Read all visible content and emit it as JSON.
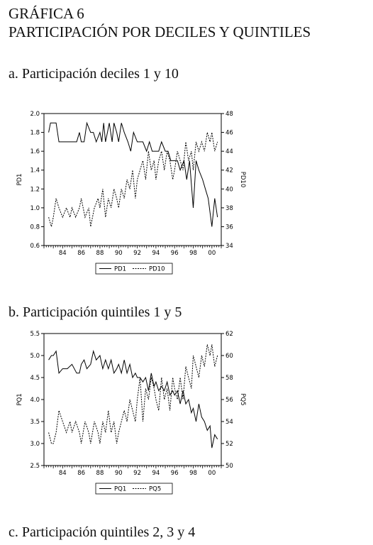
{
  "heading": {
    "line1": "GRÁFICA 6",
    "line2": "PARTICIPACIÓN POR DECILES Y QUINTILES"
  },
  "sections": {
    "a": "a. Participación deciles 1 y 10",
    "b": "b. Participación quintiles 1 y 5",
    "c": "c. Participación quintiles 2, 3 y 4"
  },
  "chart_data": [
    {
      "type": "line",
      "xlim": [
        1982,
        2001
      ],
      "xticks": [
        "84",
        "86",
        "88",
        "90",
        "92",
        "94",
        "96",
        "98",
        "00"
      ],
      "left_axis": {
        "label": "PD1",
        "ylim": [
          0.6,
          2.0
        ],
        "ticks": [
          "0.6",
          "0.8",
          "1.0",
          "1.2",
          "1.4",
          "1.6",
          "1.8",
          "2.0"
        ]
      },
      "right_axis": {
        "label": "PD10",
        "ylim": [
          34,
          48
        ],
        "ticks": [
          "34",
          "36",
          "38",
          "40",
          "42",
          "44",
          "46",
          "48"
        ]
      },
      "legend": [
        "PD1",
        "PD10"
      ],
      "legend_position": "bottom",
      "series": [
        {
          "name": "PD1",
          "axis": "left",
          "style": "solid",
          "x": [
            1982.5,
            1982.7,
            1983.0,
            1983.3,
            1983.6,
            1984.0,
            1984.5,
            1985.0,
            1985.5,
            1985.8,
            1986.0,
            1986.3,
            1986.6,
            1987.0,
            1987.3,
            1987.6,
            1988.0,
            1988.2,
            1988.4,
            1988.6,
            1988.8,
            1989.0,
            1989.3,
            1989.5,
            1989.8,
            1990.0,
            1990.3,
            1990.6,
            1991.0,
            1991.3,
            1991.6,
            1992.0,
            1992.3,
            1992.6,
            1993.0,
            1993.3,
            1993.6,
            1994.0,
            1994.3,
            1994.6,
            1995.0,
            1995.3,
            1995.6,
            1996.0,
            1996.3,
            1996.6,
            1997.0,
            1997.3,
            1997.6,
            1998.0,
            1998.3,
            1998.6,
            1999.0,
            1999.3,
            1999.6,
            2000.0,
            2000.3,
            2000.6
          ],
          "y": [
            1.8,
            1.9,
            1.9,
            1.9,
            1.7,
            1.7,
            1.7,
            1.7,
            1.7,
            1.8,
            1.7,
            1.7,
            1.9,
            1.8,
            1.8,
            1.7,
            1.8,
            1.7,
            1.9,
            1.7,
            1.8,
            1.9,
            1.7,
            1.9,
            1.8,
            1.7,
            1.9,
            1.8,
            1.7,
            1.6,
            1.8,
            1.7,
            1.7,
            1.7,
            1.6,
            1.7,
            1.6,
            1.6,
            1.6,
            1.7,
            1.6,
            1.6,
            1.5,
            1.5,
            1.5,
            1.4,
            1.5,
            1.3,
            1.5,
            1.0,
            1.5,
            1.4,
            1.3,
            1.2,
            1.1,
            0.8,
            1.1,
            0.9
          ]
        },
        {
          "name": "PD10",
          "axis": "right",
          "style": "dashed",
          "x": [
            1982.5,
            1982.8,
            1983.0,
            1983.3,
            1983.6,
            1984.0,
            1984.4,
            1984.8,
            1985.0,
            1985.4,
            1985.8,
            1986.0,
            1986.4,
            1986.8,
            1987.0,
            1987.4,
            1987.8,
            1988.0,
            1988.3,
            1988.6,
            1988.9,
            1989.2,
            1989.5,
            1989.8,
            1990.0,
            1990.3,
            1990.6,
            1990.9,
            1991.2,
            1991.5,
            1991.8,
            1992.0,
            1992.3,
            1992.6,
            1992.9,
            1993.2,
            1993.5,
            1993.8,
            1994.0,
            1994.3,
            1994.6,
            1994.9,
            1995.2,
            1995.5,
            1995.8,
            1996.0,
            1996.3,
            1996.6,
            1996.9,
            1997.2,
            1997.5,
            1997.8,
            1998.0,
            1998.3,
            1998.6,
            1998.9,
            1999.2,
            1999.5,
            1999.8,
            2000.0,
            2000.3,
            2000.6
          ],
          "y": [
            37,
            36,
            37,
            39,
            38,
            37,
            38,
            37,
            38,
            37,
            38,
            39,
            37,
            38,
            36,
            38,
            39,
            38,
            40,
            37,
            39,
            38,
            40,
            39,
            38,
            40,
            39,
            41,
            40,
            42,
            39,
            41,
            42,
            43,
            41,
            44,
            42,
            43,
            41,
            43,
            44,
            42,
            44,
            43,
            41,
            42,
            44,
            43,
            42,
            45,
            43,
            44,
            42,
            45,
            44,
            45,
            44,
            46,
            45,
            46,
            44,
            45
          ]
        }
      ]
    },
    {
      "type": "line",
      "xlim": [
        1982,
        2001
      ],
      "xticks": [
        "84",
        "86",
        "88",
        "90",
        "92",
        "94",
        "96",
        "98",
        "00"
      ],
      "left_axis": {
        "label": "PQ1",
        "ylim": [
          2.5,
          5.5
        ],
        "ticks": [
          "2.5",
          "3.0",
          "3.5",
          "4.0",
          "4.5",
          "5.0",
          "5.5"
        ]
      },
      "right_axis": {
        "label": "PQ5",
        "ylim": [
          50,
          62
        ],
        "ticks": [
          "50",
          "52",
          "54",
          "56",
          "58",
          "60",
          "62"
        ]
      },
      "legend": [
        "PQ1",
        "PQ5"
      ],
      "legend_position": "bottom",
      "series": [
        {
          "name": "PQ1",
          "axis": "left",
          "style": "solid",
          "x": [
            1982.5,
            1982.8,
            1983.0,
            1983.3,
            1983.6,
            1984.0,
            1984.5,
            1985.0,
            1985.5,
            1985.8,
            1986.0,
            1986.3,
            1986.6,
            1987.0,
            1987.3,
            1987.6,
            1988.0,
            1988.3,
            1988.6,
            1988.9,
            1989.2,
            1989.5,
            1989.8,
            1990.0,
            1990.3,
            1990.6,
            1990.9,
            1991.2,
            1991.5,
            1991.8,
            1992.0,
            1992.3,
            1992.6,
            1992.9,
            1993.2,
            1993.5,
            1993.8,
            1994.0,
            1994.3,
            1994.6,
            1994.9,
            1995.2,
            1995.5,
            1995.8,
            1996.0,
            1996.3,
            1996.6,
            1996.9,
            1997.2,
            1997.5,
            1997.8,
            1998.0,
            1998.3,
            1998.6,
            1998.9,
            1999.2,
            1999.5,
            1999.8,
            2000.0,
            2000.3,
            2000.6
          ],
          "y": [
            4.9,
            5.0,
            5.0,
            5.1,
            4.6,
            4.7,
            4.7,
            4.8,
            4.6,
            4.6,
            4.8,
            4.9,
            4.7,
            4.8,
            5.1,
            4.9,
            5.0,
            4.7,
            4.9,
            4.7,
            4.9,
            4.6,
            4.7,
            4.8,
            4.6,
            4.9,
            4.6,
            4.8,
            4.5,
            4.6,
            4.5,
            4.5,
            4.4,
            4.5,
            4.2,
            4.6,
            4.3,
            4.4,
            4.2,
            4.3,
            4.2,
            4.4,
            4.1,
            4.2,
            4.1,
            4.2,
            3.9,
            4.2,
            3.9,
            4.0,
            3.7,
            3.8,
            3.5,
            3.9,
            3.6,
            3.5,
            3.3,
            3.4,
            2.9,
            3.2,
            3.1
          ]
        },
        {
          "name": "PQ5",
          "axis": "right",
          "style": "dashed",
          "x": [
            1982.5,
            1982.8,
            1983.0,
            1983.3,
            1983.6,
            1984.0,
            1984.4,
            1984.8,
            1985.0,
            1985.4,
            1985.8,
            1986.0,
            1986.4,
            1986.8,
            1987.0,
            1987.4,
            1987.8,
            1988.0,
            1988.3,
            1988.6,
            1988.9,
            1989.2,
            1989.5,
            1989.8,
            1990.0,
            1990.3,
            1990.6,
            1990.9,
            1991.2,
            1991.5,
            1991.8,
            1992.0,
            1992.3,
            1992.6,
            1992.9,
            1993.2,
            1993.5,
            1993.8,
            1994.0,
            1994.3,
            1994.6,
            1994.9,
            1995.2,
            1995.5,
            1995.8,
            1996.0,
            1996.3,
            1996.6,
            1996.9,
            1997.2,
            1997.5,
            1997.8,
            1998.0,
            1998.3,
            1998.6,
            1998.9,
            1999.2,
            1999.5,
            1999.8,
            2000.0,
            2000.3,
            2000.6
          ],
          "y": [
            53,
            52,
            52,
            53,
            55,
            54,
            53,
            54,
            53,
            54,
            53,
            52,
            54,
            53,
            52,
            54,
            53,
            52,
            54,
            53,
            55,
            53,
            54,
            52,
            53,
            54,
            55,
            54,
            56,
            55,
            54,
            56,
            58,
            54,
            57,
            56,
            58,
            57,
            56,
            55,
            58,
            56,
            57,
            55,
            58,
            57,
            56,
            58,
            56,
            59,
            58,
            57,
            60,
            59,
            58,
            60,
            59,
            61,
            60,
            61,
            59,
            60
          ]
        }
      ]
    }
  ]
}
